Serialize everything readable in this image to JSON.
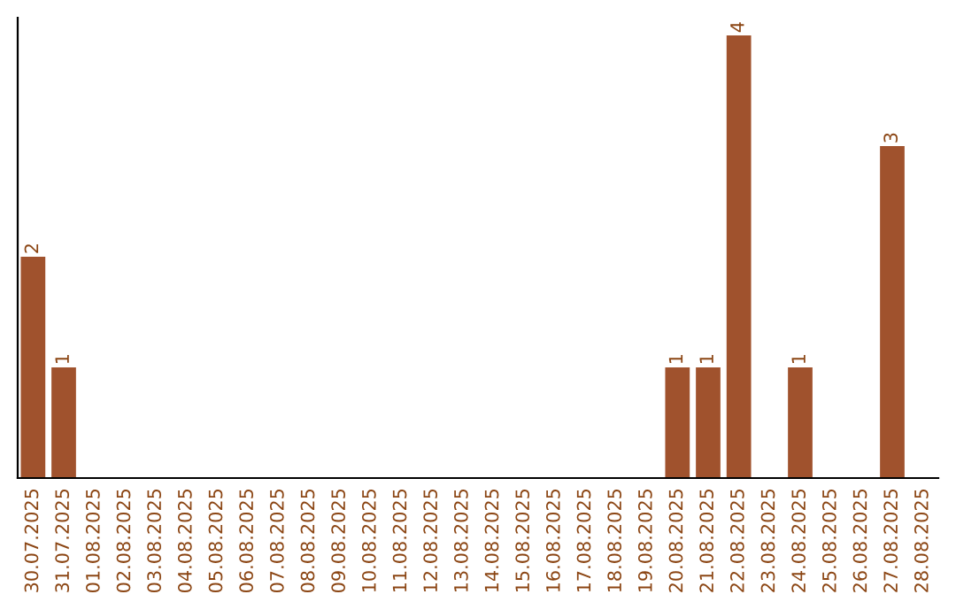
{
  "chart_data": {
    "type": "bar",
    "categories": [
      "30.07.2025",
      "31.07.2025",
      "01.08.2025",
      "02.08.2025",
      "03.08.2025",
      "04.08.2025",
      "05.08.2025",
      "06.08.2025",
      "07.08.2025",
      "08.08.2025",
      "09.08.2025",
      "10.08.2025",
      "11.08.2025",
      "12.08.2025",
      "13.08.2025",
      "14.08.2025",
      "15.08.2025",
      "16.08.2025",
      "17.08.2025",
      "18.08.2025",
      "19.08.2025",
      "20.08.2025",
      "21.08.2025",
      "22.08.2025",
      "23.08.2025",
      "24.08.2025",
      "25.08.2025",
      "26.08.2025",
      "27.08.2025",
      "28.08.2025"
    ],
    "values": [
      2,
      1,
      0,
      0,
      0,
      0,
      0,
      0,
      0,
      0,
      0,
      0,
      0,
      0,
      0,
      0,
      0,
      0,
      0,
      0,
      0,
      1,
      1,
      4,
      0,
      1,
      0,
      0,
      3,
      0
    ],
    "value_labels": [
      "2",
      "1",
      null,
      null,
      null,
      null,
      null,
      null,
      null,
      null,
      null,
      null,
      null,
      null,
      null,
      null,
      null,
      null,
      null,
      null,
      null,
      "1",
      "1",
      "4",
      null,
      "1",
      null,
      null,
      "3",
      null
    ],
    "color": "#a0522d",
    "ylim": [
      0,
      4.16
    ],
    "tick_labels": "x",
    "grid": false,
    "legend": false
  }
}
